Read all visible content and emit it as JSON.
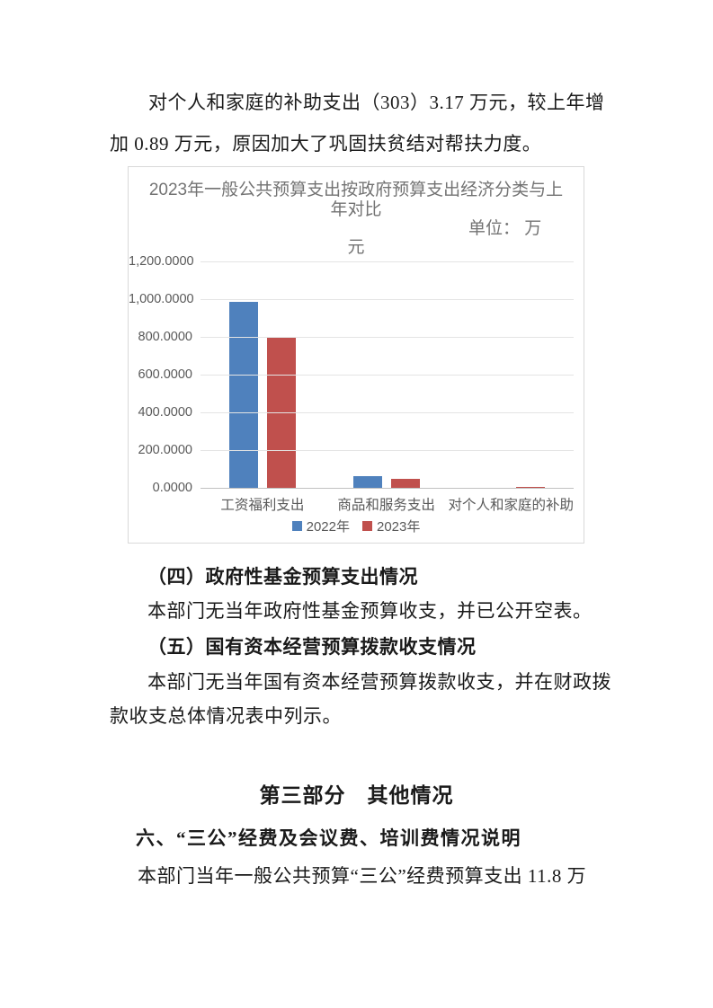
{
  "document": {
    "para_subsidy": {
      "line1": "对个人和家庭的补助支出（303）3.17 万元，较上年增",
      "line2": "加 0.89 万元，原因加大了巩固扶贫结对帮扶力度。"
    },
    "section4": {
      "heading": "（四）政府性基金预算支出情况",
      "body": "本部门无当年政府性基金预算收支，并已公开空表。"
    },
    "section5": {
      "heading": "（五）国有资本经营预算拨款收支情况",
      "body_line1": "本部门无当年国有资本经营预算拨款收支，并在财政拨",
      "body_line2": "款收支总体情况表中列示。"
    },
    "part3": {
      "title": "第三部分　其他情况"
    },
    "section6": {
      "heading": "六、“三公”经费及会议费、培训费情况说明",
      "body_line1": "本部门当年一般公共预算“三公”经费预算支出 11.8 万"
    }
  },
  "chart_data": {
    "type": "bar",
    "title": "2023年一般公共预算支出按政府预算支出经济分类与上年对比",
    "title_line1": "2023年一般公共预算支出按政府预算支出经济分类与上",
    "title_line2": "年对比",
    "unit_label": "单位：万元",
    "unit_label_line1": "单位： 万",
    "unit_label_line2": "元",
    "categories": [
      "工资福利支出",
      "商品和服务支出",
      "对个人和家庭的补助"
    ],
    "series": [
      {
        "name": "2022年",
        "color": "#4f81bd",
        "values": [
          985,
          63,
          2.28
        ]
      },
      {
        "name": "2023年",
        "color": "#c0504d",
        "values": [
          800,
          48,
          3.17
        ]
      }
    ],
    "ylim": [
      0,
      1200
    ],
    "y_tick_labels": [
      "1,200.0000",
      "1,000.0000",
      "800.0000",
      "600.0000",
      "400.0000",
      "200.0000",
      "0.0000"
    ],
    "grid": true,
    "legend_position": "bottom",
    "colors": {
      "gridline": "#e4e4e4",
      "axis_line": "#c0c0c0",
      "axis_text": "#595959",
      "title_text": "#737373",
      "frame_border": "#d9d9d9"
    }
  }
}
